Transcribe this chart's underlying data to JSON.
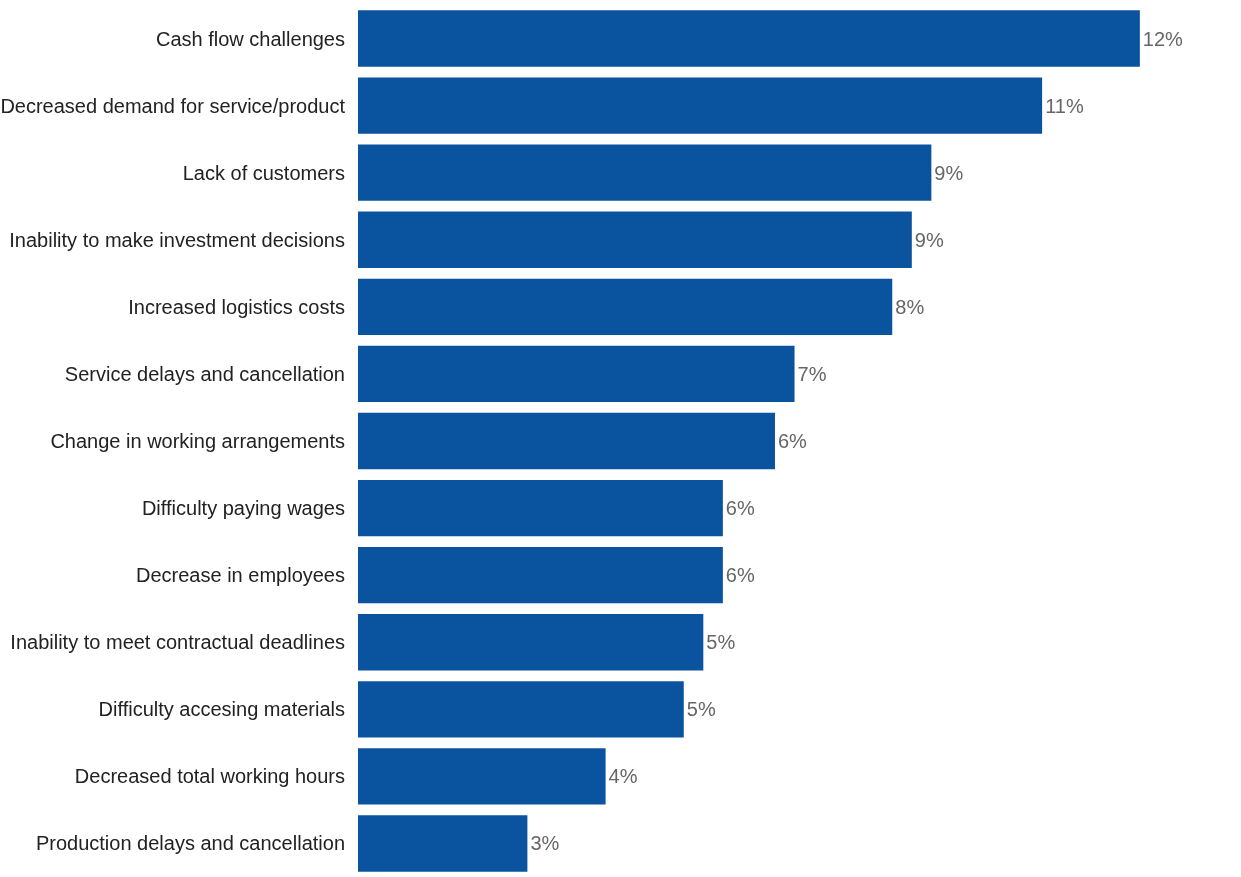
{
  "chart_data": {
    "type": "bar",
    "orientation": "horizontal",
    "categories": [
      "Cash flow challenges",
      "Decreased demand for service/product",
      "Lack of customers",
      "Inability to make investment decisions",
      "Increased logistics costs",
      "Service delays and cancellation",
      "Change in working arrangements",
      "Difficulty paying wages",
      "Decrease in employees",
      "Inability to meet contractual deadlines",
      "Difficulty accesing materials",
      "Decreased total working hours",
      "Production delays and cancellation"
    ],
    "values": [
      12.0,
      10.5,
      8.8,
      8.5,
      8.2,
      6.7,
      6.4,
      5.6,
      5.6,
      5.3,
      5.0,
      3.8,
      2.6
    ],
    "value_labels": [
      "12%",
      "11%",
      "9%",
      "9%",
      "8%",
      "7%",
      "6%",
      "6%",
      "6%",
      "5%",
      "5%",
      "4%",
      "3%"
    ],
    "color": "#0a539e"
  }
}
